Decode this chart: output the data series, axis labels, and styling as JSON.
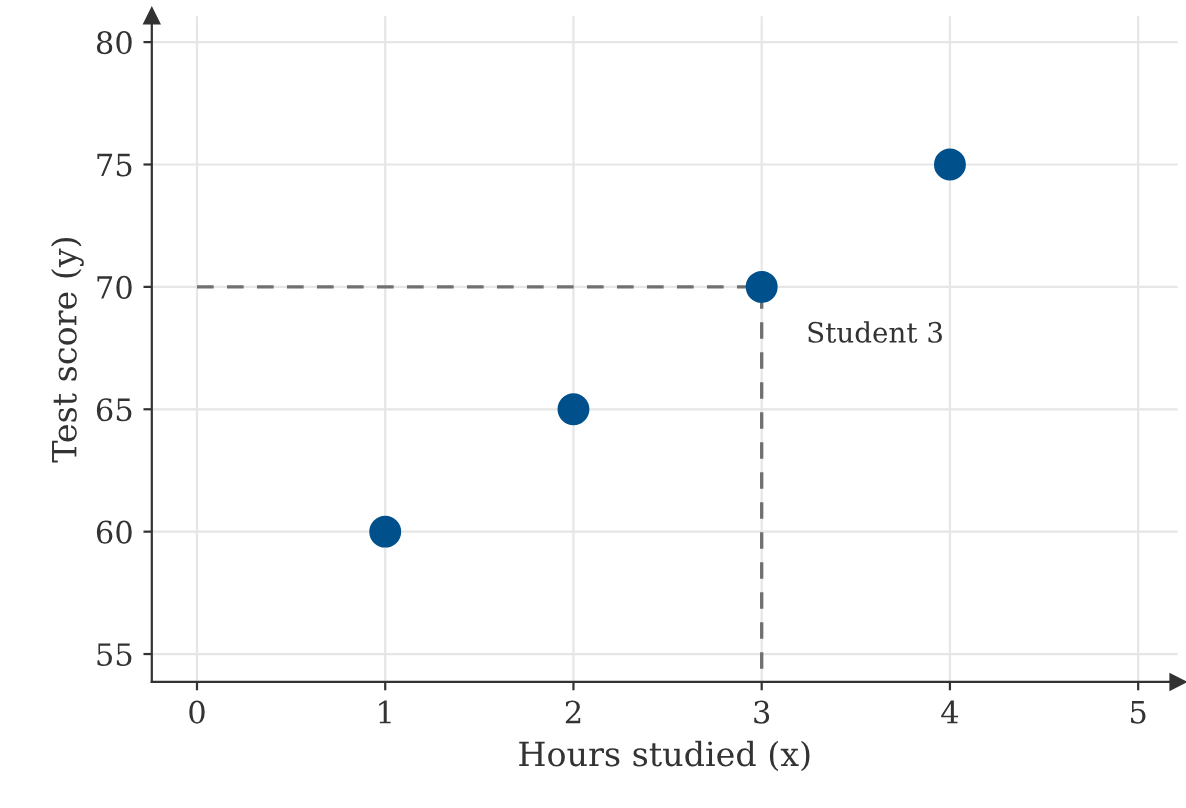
{
  "chart_data": {
    "type": "scatter",
    "xlabel": "Hours studied (x)",
    "ylabel": "Test score (y)",
    "series": [
      {
        "color": "#00508c",
        "x": [
          1,
          2,
          3,
          4
        ],
        "values": [
          60,
          65,
          70,
          75
        ],
        "marker": "circle"
      },
      {
        "type": "line",
        "color": "#707070",
        "x": [
          0,
          3,
          3
        ],
        "values": [
          70,
          70,
          53.9
        ],
        "line_style": "dashed",
        "marker": "none"
      }
    ],
    "annotations": [
      {
        "text": "Student 3",
        "x": 3,
        "y": 70
      }
    ],
    "xlim": [
      -0.24,
      5.21
    ],
    "ylim": [
      53.86,
      81.06
    ],
    "xticks": [
      0,
      1,
      2,
      3,
      4,
      5
    ],
    "yticks": [
      55,
      60,
      65,
      70,
      75,
      80
    ],
    "grid": true
  }
}
